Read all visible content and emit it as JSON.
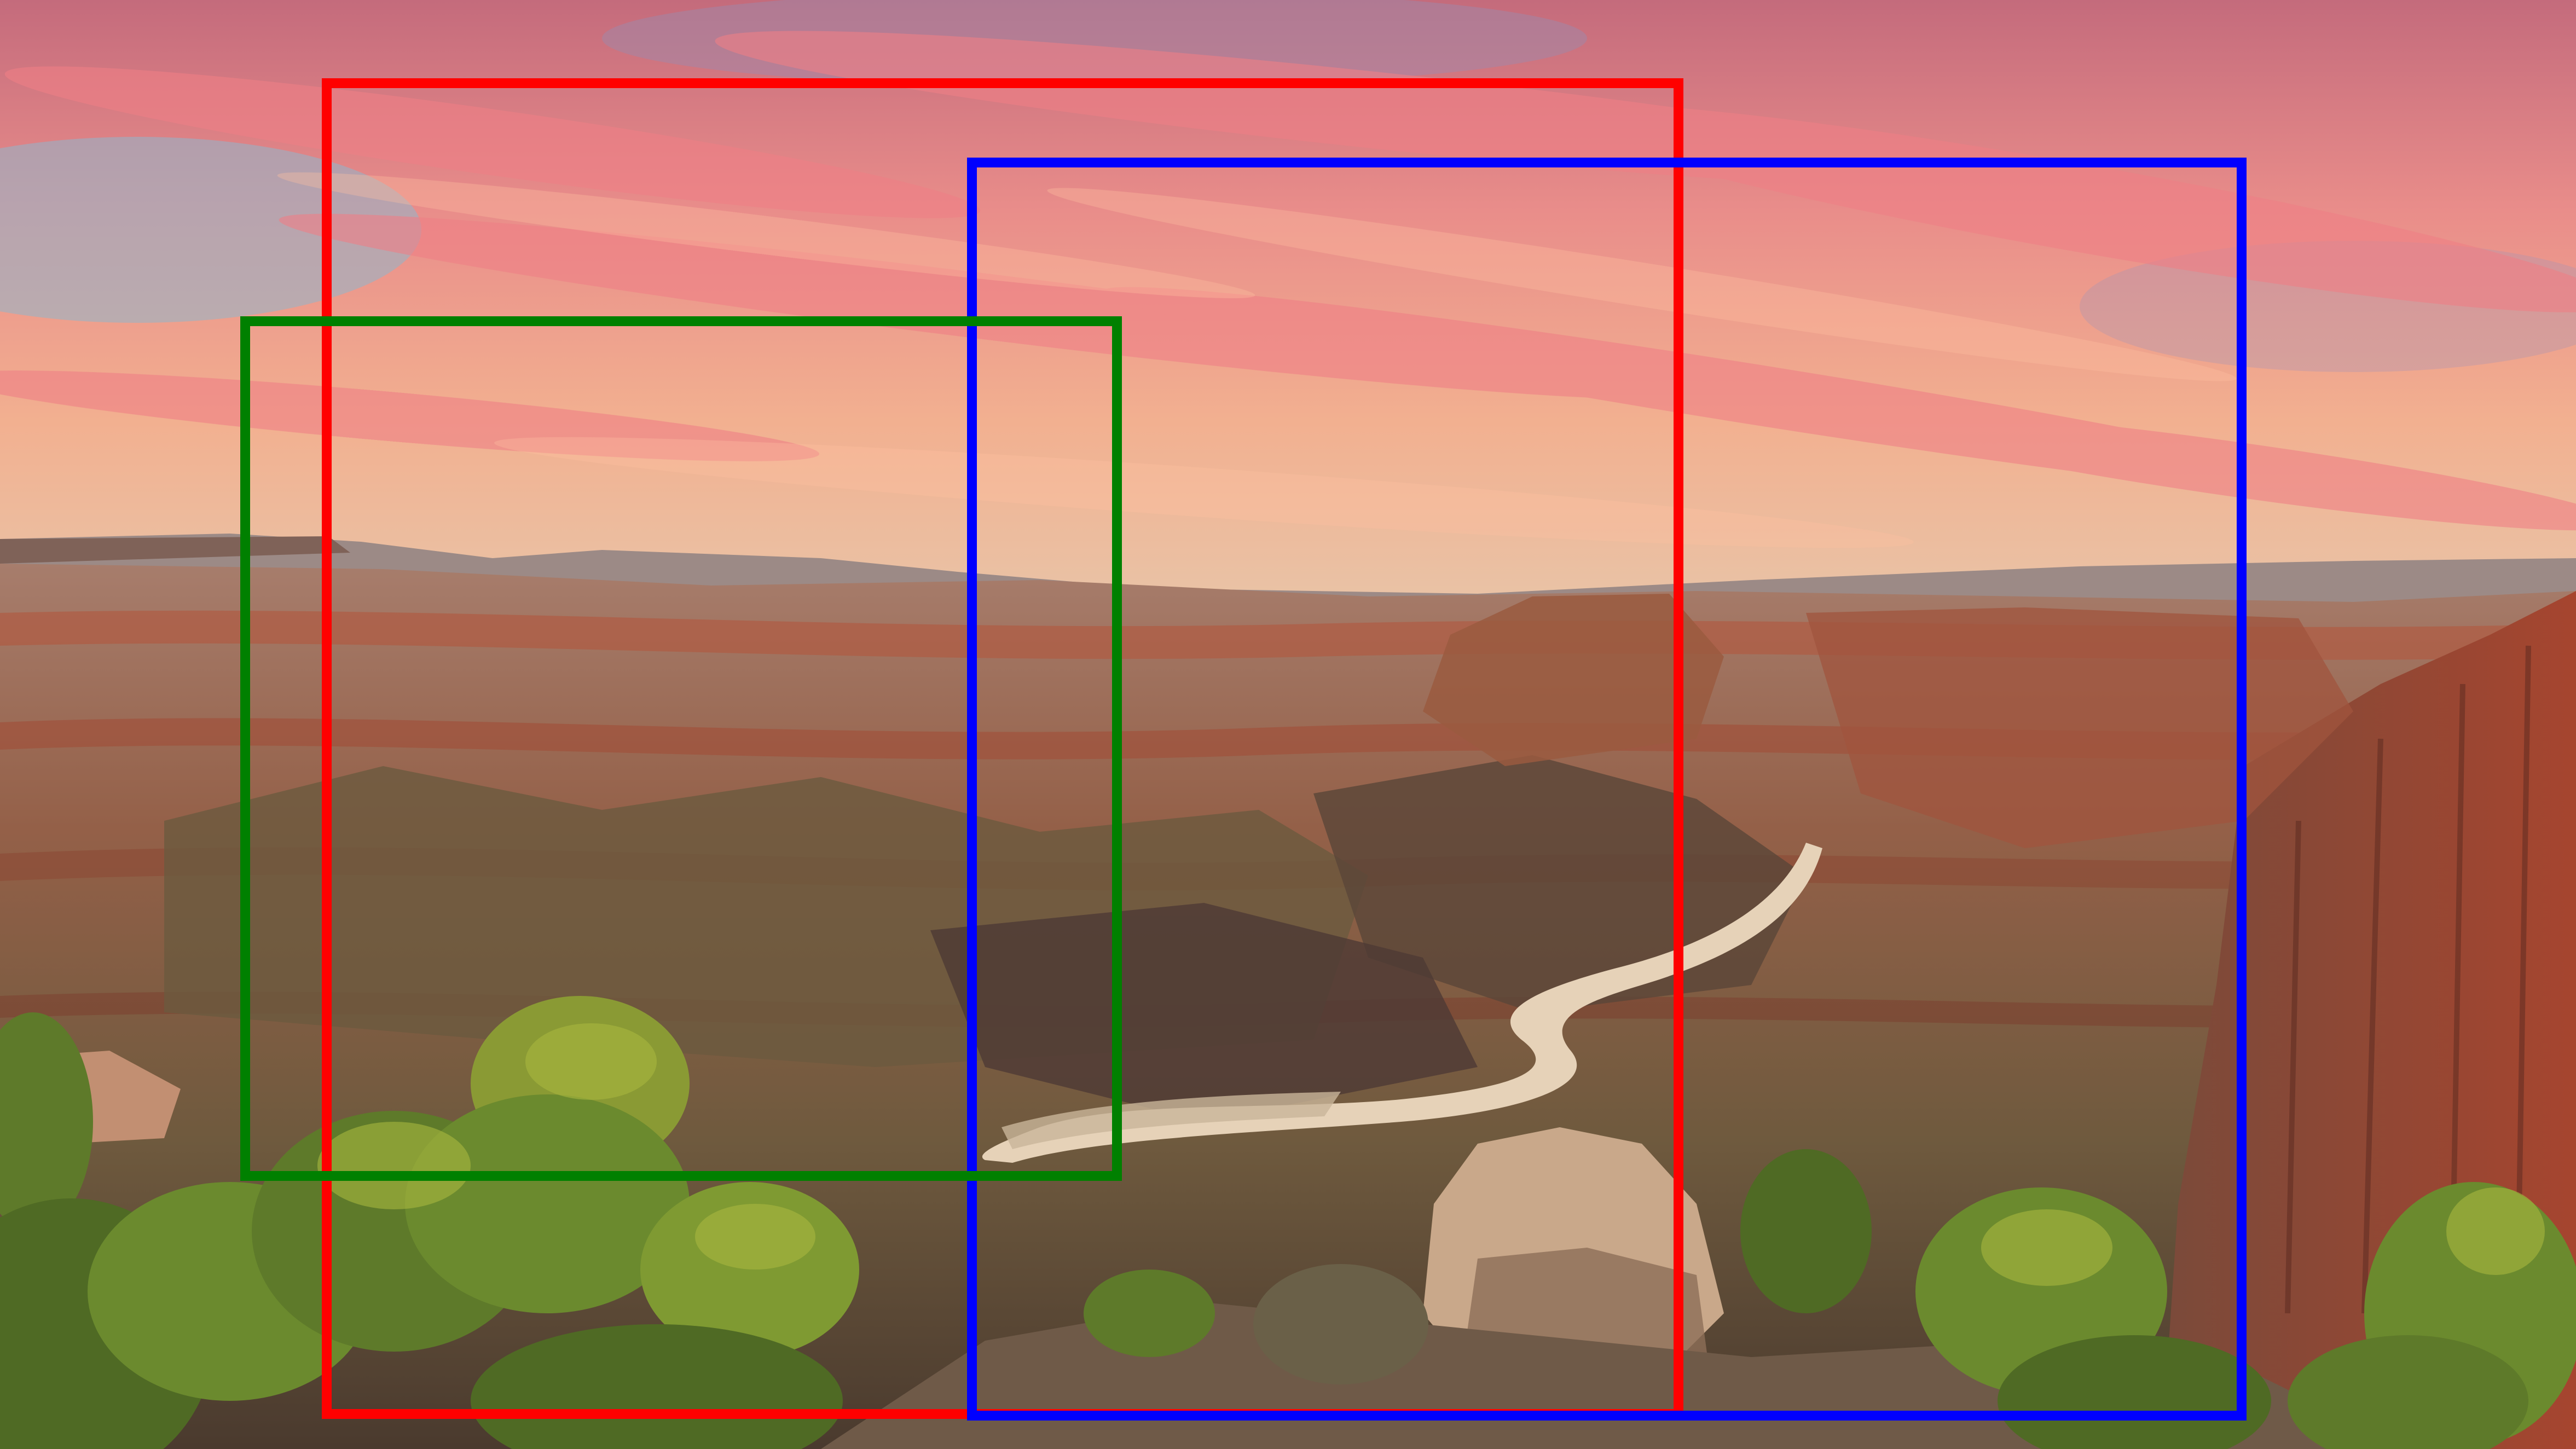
{
  "scene": {
    "subject": "canyon-landscape-at-sunset",
    "palette": {
      "sky_high": "#c96f7a",
      "sky_glow": "#f3a48a",
      "sky_blue": "#8fb6cc",
      "cloud": "#ef7f86",
      "haze": "#d9b49b",
      "rock_far": "#8b6a63",
      "rock_red": "#9c4a36",
      "rock_mid": "#8a6a48",
      "rock_shadow": "#4e3a34",
      "river": "#e6d2b8",
      "tree": "#5e7a2a",
      "tree_light": "#9aa83a"
    }
  },
  "boxes": [
    {
      "name": "red-box",
      "color": "#ff0000"
    },
    {
      "name": "blue-box",
      "color": "#0000ff"
    },
    {
      "name": "green-box",
      "color": "#008000"
    }
  ]
}
